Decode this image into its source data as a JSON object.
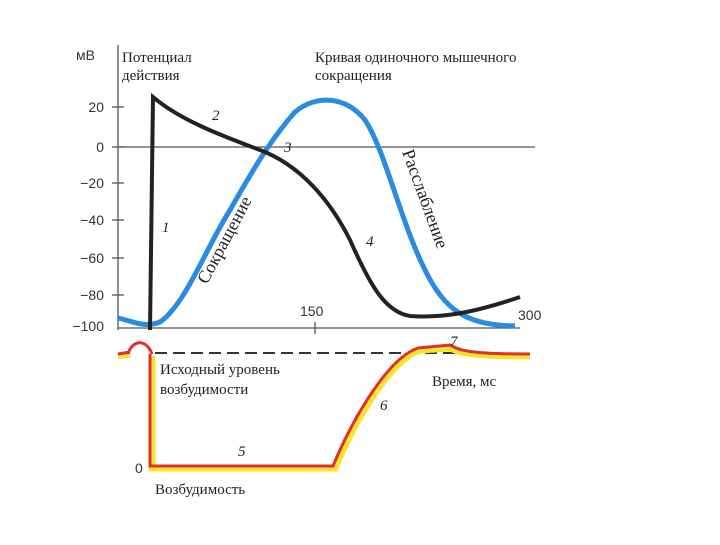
{
  "axis": {
    "unit": "мВ",
    "ticks": [
      "20",
      "0",
      "−20",
      "−40",
      "−60",
      "−80",
      "−100"
    ],
    "x_ticks": [
      "150",
      "300"
    ],
    "x_label": "Время, мс"
  },
  "labels": {
    "action_potential": [
      "Потенциал",
      "действия"
    ],
    "contraction_curve": [
      "Кривая одиночного мышечного",
      "сокращения"
    ],
    "contraction": "Сокращение",
    "relaxation": "Расслабление",
    "baseline_excitability": [
      "Исходный уровень",
      "возбудимости"
    ],
    "excitability": "Возбудимость",
    "zero": "0"
  },
  "markers": [
    "1",
    "2",
    "3",
    "4",
    "5",
    "6",
    "7"
  ]
}
